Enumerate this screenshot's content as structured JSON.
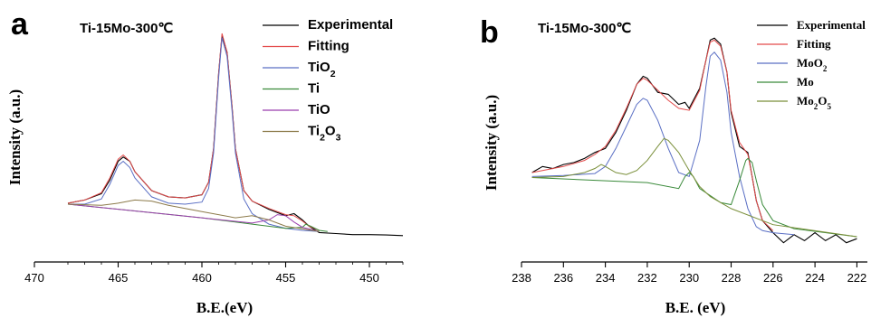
{
  "chart_data": [
    {
      "type": "line",
      "panel_label": "a",
      "sample_label": "Ti-15Mo-300℃",
      "xlabel": "B.E.(eV)",
      "ylabel": "Intensity (a.u.)",
      "xlim": [
        470,
        448
      ],
      "ylim": [
        0,
        100
      ],
      "xticks": [
        470,
        465,
        460,
        455,
        450
      ],
      "legend_placement": "top-right",
      "series": [
        {
          "name": "Experimental",
          "name_sub": null,
          "color": "#000000",
          "x": [
            468,
            467,
            466,
            465.5,
            465,
            464.7,
            464.3,
            464,
            463,
            462,
            461,
            460,
            459.6,
            459.3,
            459,
            458.8,
            458.5,
            458.2,
            458,
            457.5,
            457,
            456,
            455,
            454.5,
            454,
            453.6,
            453,
            452,
            451,
            450,
            449,
            448
          ],
          "y": [
            16,
            17.5,
            20.5,
            27,
            36,
            38,
            36,
            31,
            22,
            19,
            18.5,
            20,
            26,
            42,
            78,
            96,
            88,
            62,
            42,
            22,
            17,
            13,
            10,
            11,
            8,
            5,
            2,
            1.5,
            1,
            1,
            0.8,
            0.5
          ]
        },
        {
          "name": "Fitting",
          "name_sub": null,
          "color": "#e34a4a",
          "x": [
            468,
            467,
            466,
            465.5,
            465,
            464.7,
            464.3,
            464,
            463,
            462,
            461,
            460,
            459.6,
            459.3,
            459,
            458.8,
            458.5,
            458.2,
            458,
            457.5,
            457,
            456,
            455,
            454.5,
            454,
            453.6,
            453
          ],
          "y": [
            16,
            17.5,
            21,
            28,
            37,
            39,
            36,
            31,
            22,
            19,
            18.5,
            20,
            26,
            42,
            78,
            97,
            88,
            62,
            42,
            22,
            17,
            13.5,
            10.5,
            10,
            7.5,
            5,
            3
          ]
        },
        {
          "name": "TiO",
          "name_sub": "2",
          "color": "#5a6fc4",
          "x": [
            468,
            467,
            466,
            465.5,
            465,
            464.7,
            464.3,
            464,
            463,
            462,
            461,
            460,
            459.6,
            459.3,
            459,
            458.8,
            458.5,
            458.2,
            458,
            457.5,
            457,
            456,
            455,
            454,
            453
          ],
          "y": [
            15.5,
            15.5,
            18,
            25,
            34,
            36,
            33,
            28,
            19,
            16,
            15.5,
            16.5,
            23,
            40,
            76,
            95,
            86,
            60,
            40,
            18,
            11,
            6,
            4,
            3,
            2.5
          ]
        },
        {
          "name": "Ti",
          "name_sub": null,
          "color": "#3a8a3a",
          "x": [
            468,
            460,
            457,
            455,
            454,
            453.8,
            453.5,
            453,
            452.5
          ],
          "y": [
            15.5,
            9,
            6,
            4,
            4.5,
            6,
            5,
            3,
            2.5
          ]
        },
        {
          "name": "TiO",
          "name_sub": null,
          "color": "#9b3fae",
          "x": [
            468,
            460,
            457,
            456,
            455.5,
            455,
            454.5,
            454,
            453
          ],
          "y": [
            15.5,
            9,
            6.5,
            8,
            10.5,
            10,
            7,
            4.5,
            2.5
          ]
        },
        {
          "name": "Ti",
          "name_sub": "2",
          "name_tail": "O",
          "name_tail_sub": "3",
          "color": "#8c7a4a",
          "x": [
            468,
            466,
            465,
            464,
            463,
            462,
            461,
            460,
            458,
            457,
            456,
            455,
            453
          ],
          "y": [
            15.5,
            15,
            16,
            17.5,
            17,
            15,
            13.5,
            12,
            9,
            10,
            8,
            5,
            2.5
          ]
        }
      ]
    },
    {
      "type": "line",
      "panel_label": "b",
      "sample_label": "Ti-15Mo-300℃",
      "xlabel": "B.E. (eV)",
      "ylabel": "Intensity (a.u.)",
      "xlim": [
        238,
        221.5
      ],
      "ylim": [
        0,
        100
      ],
      "xticks": [
        238,
        236,
        234,
        232,
        230,
        228,
        226,
        224,
        222
      ],
      "legend_placement": "top-right",
      "series": [
        {
          "name": "Experimental",
          "name_sub": null,
          "color": "#000000",
          "x": [
            237.5,
            237,
            236.5,
            236,
            235.5,
            235,
            234.5,
            234,
            233.5,
            233,
            232.5,
            232.2,
            232,
            231.5,
            231,
            230.5,
            230.2,
            230,
            229.5,
            229.2,
            229,
            228.8,
            228.5,
            228.2,
            228,
            227.6,
            227.2,
            227,
            226.8,
            226.5,
            226,
            225.5,
            225,
            224.5,
            224,
            223.5,
            223,
            222.5,
            222
          ],
          "y": [
            32,
            35,
            34,
            36,
            37,
            39,
            42,
            44,
            52,
            63,
            76,
            80,
            79,
            72,
            71,
            66,
            67,
            64,
            74,
            88,
            98,
            99,
            96,
            82,
            62,
            45,
            42,
            30,
            18,
            8,
            2,
            -3,
            1,
            -2,
            2,
            -2,
            1,
            -3,
            -1
          ]
        },
        {
          "name": "Fitting",
          "name_sub": null,
          "color": "#e34a4a",
          "x": [
            237.5,
            237,
            236,
            235,
            234.5,
            234,
            233.5,
            233,
            232.5,
            232.2,
            232,
            231.5,
            231,
            230.5,
            230,
            229.5,
            229.2,
            229,
            228.8,
            228.5,
            228.2,
            228,
            227.6,
            227.2,
            227,
            226.8,
            226.5,
            226
          ],
          "y": [
            32,
            33,
            35,
            38,
            41,
            45,
            53,
            64,
            76,
            79,
            78,
            73,
            68,
            64,
            63,
            73,
            88,
            97,
            98,
            95,
            82,
            63,
            47,
            41,
            30,
            18,
            8,
            3
          ]
        },
        {
          "name": "MoO",
          "name_sub": "2",
          "color": "#5a6fc4",
          "x": [
            237.5,
            236,
            234.5,
            234,
            233.5,
            233,
            232.5,
            232.2,
            232,
            231.5,
            231,
            230.5,
            230,
            229.5,
            229.2,
            229,
            228.8,
            228.5,
            228.2,
            228,
            227.6,
            227.2,
            226.8,
            226.5,
            226,
            225
          ],
          "y": [
            30,
            30.5,
            31.5,
            35,
            44,
            55,
            66,
            69,
            68,
            58,
            44,
            32,
            30,
            48,
            75,
            90,
            92,
            88,
            72,
            52,
            30,
            14,
            5,
            3,
            2,
            1
          ]
        },
        {
          "name": "Mo",
          "name_sub": null,
          "color": "#3a8a3a",
          "x": [
            237.5,
            232,
            230.5,
            230.2,
            230,
            229.8,
            229.5,
            228.5,
            228,
            227.6,
            227.3,
            227.2,
            227,
            226.8,
            226.5,
            226,
            225,
            222
          ],
          "y": [
            29.5,
            27,
            24,
            30,
            32,
            30,
            24,
            17,
            16,
            28,
            38,
            39,
            37,
            28,
            16,
            8,
            4,
            0
          ]
        },
        {
          "name": "Mo",
          "name_sub": "2",
          "name_tail": "O",
          "name_tail_sub": "5",
          "color": "#7a8f3a",
          "x": [
            237.5,
            236,
            235,
            234.5,
            234.2,
            234,
            233.5,
            233,
            232.5,
            232,
            231.5,
            231.2,
            231,
            230.5,
            230,
            229.5,
            229,
            228,
            226,
            222
          ],
          "y": [
            29.5,
            30,
            32,
            34,
            36,
            35,
            32,
            31,
            33,
            38,
            45,
            49,
            48,
            42,
            33,
            25,
            20,
            14,
            6,
            0
          ]
        }
      ]
    }
  ]
}
